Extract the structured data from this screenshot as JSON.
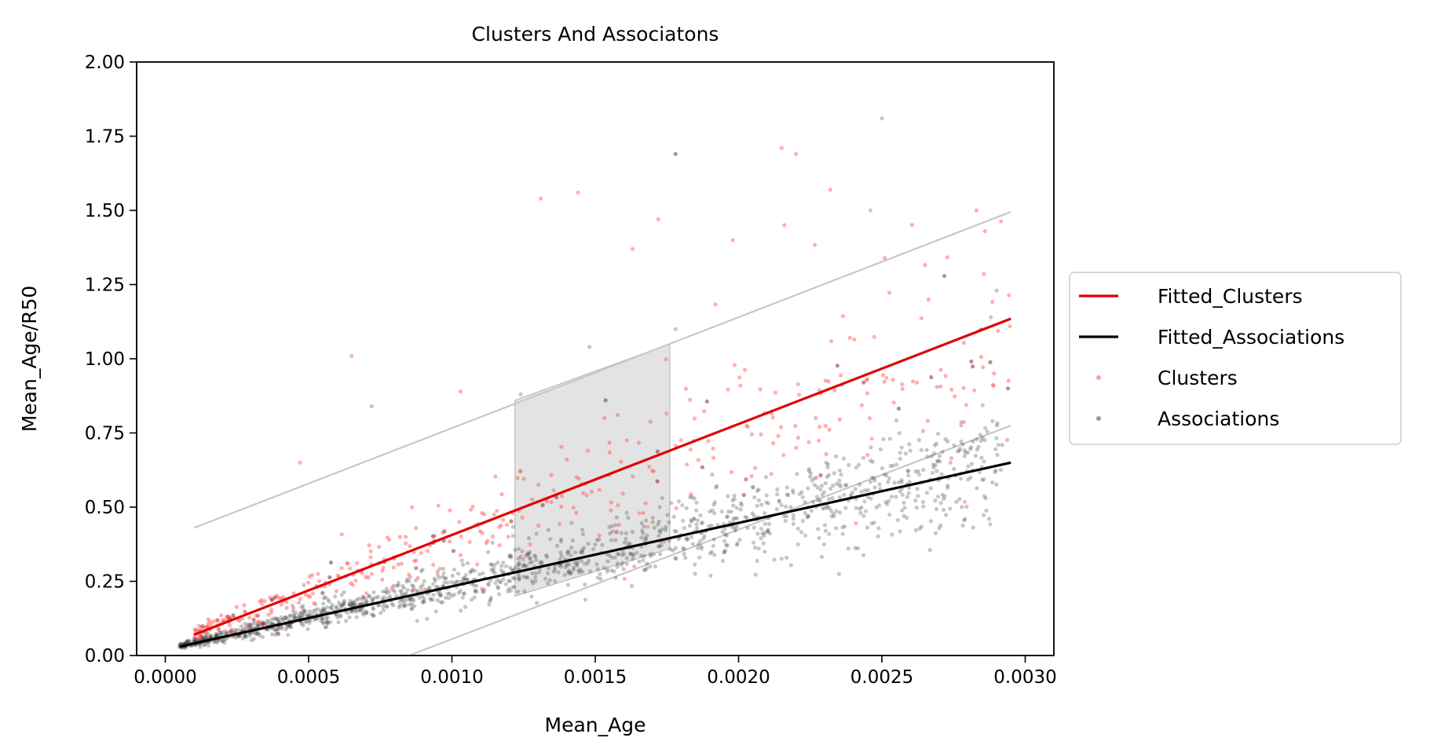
{
  "chart_data": {
    "type": "scatter",
    "title": "Clusters And Associatons",
    "xlabel": "Mean_Age",
    "ylabel": "Mean_Age/R50",
    "xlim": [
      -0.0001,
      0.0031
    ],
    "ylim": [
      0,
      2
    ],
    "xticks": [
      0.0,
      0.0005,
      0.001,
      0.0015,
      0.002,
      0.0025,
      0.003
    ],
    "xtick_labels": [
      "0.0000",
      "0.0005",
      "0.0010",
      "0.0015",
      "0.0020",
      "0.0025",
      "0.0030"
    ],
    "yticks": [
      0,
      0.25,
      0.5,
      0.75,
      1.0,
      1.25,
      1.5,
      1.75,
      2.0
    ],
    "ytick_labels": [
      "0.00",
      "0.25",
      "0.50",
      "0.75",
      "1.00",
      "1.25",
      "1.50",
      "1.75",
      "2.00"
    ],
    "grid": false,
    "legend_position": "right-outside",
    "legend": [
      {
        "label": "Fitted_Clusters",
        "kind": "line",
        "color": "#e00000"
      },
      {
        "label": "Fitted_Associations",
        "kind": "line",
        "color": "#000000"
      },
      {
        "label": "Clusters",
        "kind": "marker",
        "color": "#ff6060"
      },
      {
        "label": "Associations",
        "kind": "marker",
        "color": "#555555"
      }
    ],
    "fit_lines": [
      {
        "name": "Fitted_Clusters",
        "color": "#e00000",
        "x": [
          0.0001,
          0.00295
        ],
        "y": [
          0.07,
          1.135
        ]
      },
      {
        "name": "Fitted_Associations",
        "color": "#000000",
        "x": [
          5e-05,
          0.00295
        ],
        "y": [
          0.03,
          0.65
        ]
      }
    ],
    "envelope_lines": [
      {
        "color": "#c8c8c8",
        "x": [
          0.0001,
          0.00295
        ],
        "y": [
          0.43,
          1.495
        ]
      },
      {
        "color": "#c8c8c8",
        "x": [
          0.00085,
          0.00295
        ],
        "y": [
          0.0,
          0.775
        ]
      }
    ],
    "shaded_region": {
      "color": "#d9d9d9",
      "x": [
        0.00122,
        0.00176
      ],
      "y_top": [
        0.86,
        1.05
      ],
      "y_bottom": [
        0.2,
        0.36
      ]
    },
    "series_points": [
      {
        "name": "Clusters",
        "color": "#ff5050",
        "seed": 7,
        "count": 420,
        "x_range": [
          0.0001,
          0.00295
        ],
        "trend": {
          "intercept": 0.032,
          "slope": 370
        },
        "spread": 0.55,
        "extra": [
          {
            "x": 0.00178,
            "y": 1.69
          },
          {
            "x": 0.00215,
            "y": 1.71
          },
          {
            "x": 0.0022,
            "y": 1.69
          },
          {
            "x": 0.00131,
            "y": 1.54
          },
          {
            "x": 0.00144,
            "y": 1.56
          },
          {
            "x": 0.00232,
            "y": 1.57
          },
          {
            "x": 0.00283,
            "y": 1.5
          },
          {
            "x": 0.00172,
            "y": 1.47
          },
          {
            "x": 0.00216,
            "y": 1.45
          },
          {
            "x": 0.00163,
            "y": 1.37
          },
          {
            "x": 0.00198,
            "y": 1.4
          },
          {
            "x": 0.00251,
            "y": 1.34
          },
          {
            "x": 0.00065,
            "y": 1.01
          },
          {
            "x": 0.00047,
            "y": 0.65
          },
          {
            "x": 0.00103,
            "y": 0.89
          },
          {
            "x": 0.00286,
            "y": 1.43
          },
          {
            "x": 0.00294,
            "y": 0.9
          }
        ]
      },
      {
        "name": "Associations",
        "color": "#444444",
        "seed": 13,
        "count": 1450,
        "x_range": [
          5e-05,
          0.00292
        ],
        "trend": {
          "intercept": 0.022,
          "slope": 215
        },
        "spread": 0.45,
        "extra": [
          {
            "x": 0.0025,
            "y": 1.81
          },
          {
            "x": 0.00246,
            "y": 1.5
          },
          {
            "x": 0.00178,
            "y": 1.1
          },
          {
            "x": 0.00148,
            "y": 1.04
          },
          {
            "x": 0.00072,
            "y": 0.84
          },
          {
            "x": 0.00124,
            "y": 0.88
          },
          {
            "x": 0.0029,
            "y": 1.23
          },
          {
            "x": 0.00288,
            "y": 1.14
          }
        ]
      }
    ]
  }
}
